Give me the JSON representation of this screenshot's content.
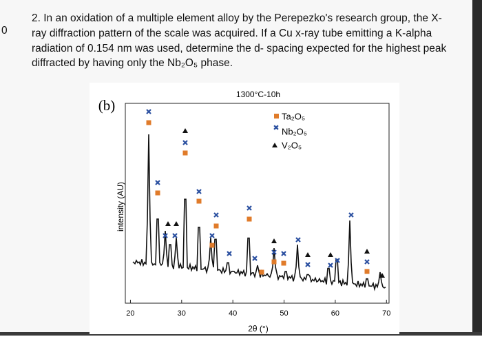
{
  "question": {
    "number_fragment": "0",
    "lines": [
      "2. In an oxidation of a multiple element alloy by the Perepezko's research group, the X-",
      "ray diffraction pattern of the scale was acquired. If a Cu x-ray tube emitting a K-alpha",
      "radiation of 0.154 nm was used, determine the d- spacing expected for the highest peak",
      "diffracted by having only the Nb₂O₅ phase."
    ]
  },
  "figure": {
    "panel": "(b)",
    "title": "1300°C-10h",
    "y_label": "intensity (AU)",
    "x_label": "2θ (°)",
    "legend": [
      "Ta₂O₅",
      "Nb₂O₅",
      "V₂O₅"
    ],
    "xlim": [
      19,
      70.5
    ],
    "xticks": [
      20,
      30,
      40,
      50,
      60,
      70
    ]
  }
}
